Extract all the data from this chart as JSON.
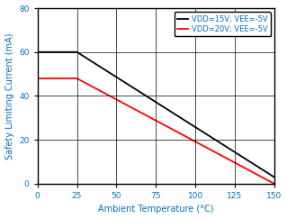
{
  "black_x": [
    0,
    25,
    150
  ],
  "black_y": [
    60,
    60,
    3
  ],
  "red_x": [
    0,
    25,
    150
  ],
  "red_y": [
    48,
    48,
    0
  ],
  "black_color": "#000000",
  "red_color": "#ff0000",
  "legend_labels": [
    "VDD=15V; VEE=-5V",
    "VDD=20V; VEE=-5V"
  ],
  "xlabel": "Ambient Temperature (°C)",
  "ylabel": "Safety Limiting Current (mA)",
  "xlim": [
    0,
    150
  ],
  "ylim": [
    0,
    80
  ],
  "xticks": [
    0,
    25,
    50,
    75,
    100,
    125,
    150
  ],
  "yticks": [
    0,
    20,
    40,
    60,
    80
  ],
  "axis_label_color": "#0070c0",
  "tick_label_color": "#0070c0",
  "legend_label_color": "#0070c0",
  "linewidth": 1.3,
  "grid_color": "#000000",
  "grid_linewidth": 0.5,
  "bg_color": "#ffffff",
  "plot_bg_color": "#ffffff",
  "legend_fontsize": 6.0,
  "axis_label_fontsize": 7.0,
  "tick_fontsize": 6.5
}
